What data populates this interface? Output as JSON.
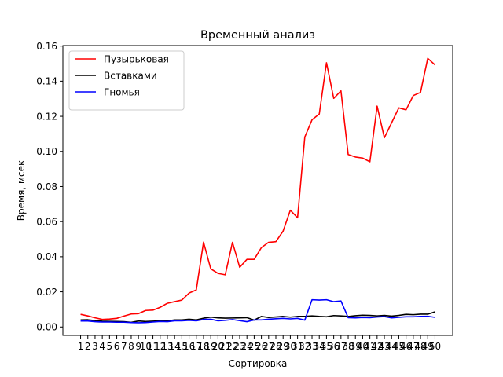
{
  "chart_data": {
    "type": "line",
    "title": "Временный анализ",
    "xlabel": "Сортировка",
    "ylabel": "Время, мсек",
    "x": [
      1,
      2,
      3,
      4,
      5,
      6,
      7,
      8,
      9,
      10,
      11,
      12,
      13,
      14,
      15,
      16,
      17,
      18,
      19,
      20,
      21,
      22,
      23,
      24,
      25,
      26,
      27,
      28,
      29,
      30,
      31,
      32,
      33,
      34,
      35,
      36,
      37,
      38,
      39,
      40,
      41,
      42,
      43,
      44,
      45,
      46,
      47,
      48,
      49,
      50
    ],
    "ylim": [
      -0.0048,
      0.16
    ],
    "yticks": [
      0.0,
      0.02,
      0.04,
      0.06,
      0.08,
      0.1,
      0.12,
      0.14,
      0.16
    ],
    "ytick_labels": [
      "0.00",
      "0.02",
      "0.04",
      "0.06",
      "0.08",
      "0.10",
      "0.12",
      "0.14",
      "0.16"
    ],
    "grid": false,
    "legend_position": "top-left",
    "series": [
      {
        "name": "Пузырьковая",
        "color": "#ff0000",
        "values": [
          0.0072,
          0.0063,
          0.0052,
          0.0043,
          0.0045,
          0.0049,
          0.0062,
          0.0074,
          0.0076,
          0.0094,
          0.0096,
          0.0112,
          0.0135,
          0.0144,
          0.0153,
          0.0193,
          0.0211,
          0.0483,
          0.0331,
          0.0305,
          0.0297,
          0.0482,
          0.034,
          0.0385,
          0.0385,
          0.0452,
          0.0482,
          0.0486,
          0.0546,
          0.0665,
          0.0622,
          0.1082,
          0.118,
          0.1213,
          0.1505,
          0.1302,
          0.1345,
          0.0982,
          0.0968,
          0.0962,
          0.0941,
          0.1258,
          0.1078,
          0.1163,
          0.1248,
          0.1237,
          0.1318,
          0.1336,
          0.153,
          0.1493
        ]
      },
      {
        "name": "Вставками",
        "color": "#000000",
        "values": [
          0.004,
          0.0041,
          0.0036,
          0.0033,
          0.0032,
          0.0031,
          0.003,
          0.0026,
          0.0034,
          0.0031,
          0.0033,
          0.0035,
          0.0034,
          0.004,
          0.004,
          0.0044,
          0.004,
          0.005,
          0.0056,
          0.0052,
          0.005,
          0.0051,
          0.0052,
          0.0053,
          0.0039,
          0.006,
          0.0054,
          0.0057,
          0.006,
          0.0056,
          0.006,
          0.006,
          0.0063,
          0.006,
          0.0058,
          0.0065,
          0.0063,
          0.006,
          0.0064,
          0.0067,
          0.0066,
          0.0063,
          0.0066,
          0.0062,
          0.0066,
          0.0072,
          0.007,
          0.0073,
          0.0073,
          0.0086
        ]
      },
      {
        "name": "Гномья",
        "color": "#0000ff",
        "values": [
          0.0034,
          0.0034,
          0.003,
          0.0028,
          0.0028,
          0.0027,
          0.0027,
          0.0025,
          0.0024,
          0.0025,
          0.0028,
          0.0031,
          0.003,
          0.0035,
          0.0035,
          0.0038,
          0.0035,
          0.0043,
          0.0044,
          0.0035,
          0.0038,
          0.0042,
          0.0036,
          0.003,
          0.004,
          0.004,
          0.0044,
          0.0047,
          0.0049,
          0.0046,
          0.0049,
          0.0039,
          0.0155,
          0.0153,
          0.0155,
          0.0144,
          0.0148,
          0.0053,
          0.0052,
          0.0054,
          0.0053,
          0.0057,
          0.0059,
          0.0052,
          0.0055,
          0.0058,
          0.0058,
          0.006,
          0.0061,
          0.0055
        ]
      }
    ]
  }
}
